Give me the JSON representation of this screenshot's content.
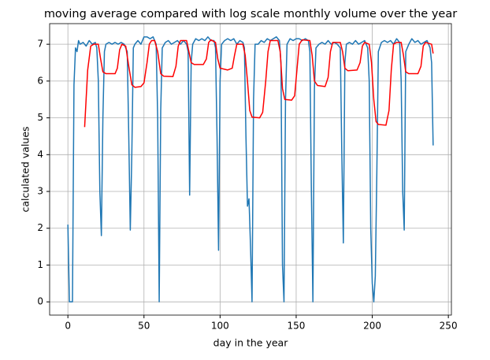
{
  "chart_data": {
    "type": "line",
    "title": "moving average compared with log scale monthly volume over the year",
    "x_label": "day in the year",
    "y_label": "calculated values",
    "xlim": [
      -12,
      252
    ],
    "xticks": [
      0,
      50,
      100,
      150,
      200,
      250
    ],
    "ylim": [
      -0.36,
      7.56
    ],
    "yticks": [
      0,
      1,
      2,
      3,
      4,
      5,
      6,
      7
    ],
    "grid": true,
    "series": [
      {
        "color": "#1f77b4",
        "x": [
          0,
          1,
          2,
          3,
          4,
          5,
          6,
          7,
          8,
          10,
          12,
          14,
          16,
          18,
          19,
          20,
          21,
          22,
          23,
          24,
          25,
          27,
          29,
          31,
          33,
          35,
          37,
          39,
          40,
          41,
          42,
          43,
          44,
          46,
          48,
          50,
          52,
          54,
          56,
          58,
          59,
          60,
          61,
          62,
          64,
          66,
          68,
          70,
          72,
          74,
          76,
          78,
          79,
          80,
          81,
          82,
          84,
          86,
          88,
          90,
          92,
          94,
          96,
          97,
          98,
          99,
          100,
          101,
          103,
          105,
          107,
          109,
          111,
          113,
          115,
          116,
          117,
          118,
          119,
          120,
          121,
          122,
          123,
          125,
          127,
          129,
          131,
          133,
          135,
          137,
          139,
          140,
          141,
          142,
          143,
          144,
          146,
          148,
          150,
          152,
          154,
          156,
          158,
          159,
          160,
          161,
          162,
          163,
          165,
          167,
          169,
          171,
          173,
          175,
          177,
          179,
          180,
          181,
          182,
          183,
          185,
          187,
          189,
          191,
          193,
          195,
          197,
          198,
          199,
          200,
          201,
          202,
          203,
          204,
          206,
          208,
          210,
          212,
          214,
          216,
          218,
          219,
          220,
          221,
          222,
          224,
          226,
          228,
          230,
          232,
          234,
          236,
          238,
          239,
          240
        ],
        "values": [
          2.1,
          0,
          0,
          0,
          5.9,
          6.9,
          6.8,
          7.1,
          7.0,
          7.05,
          6.95,
          7.1,
          7.0,
          7.05,
          6.9,
          6.0,
          3.0,
          1.8,
          5.0,
          6.8,
          7.0,
          7.05,
          7.0,
          7.05,
          7.0,
          7.05,
          7.0,
          6.8,
          4.5,
          1.95,
          4.0,
          6.9,
          7.0,
          7.1,
          7.0,
          7.2,
          7.2,
          7.15,
          7.2,
          7.0,
          5.0,
          0,
          5.2,
          6.9,
          7.05,
          7.1,
          7.0,
          7.05,
          7.1,
          7.0,
          7.1,
          7.0,
          6.8,
          2.9,
          6.5,
          7.0,
          7.15,
          7.1,
          7.15,
          7.1,
          7.2,
          7.1,
          7.1,
          6.9,
          4.5,
          1.4,
          6.0,
          7.0,
          7.1,
          7.15,
          7.1,
          7.15,
          7.0,
          7.1,
          7.05,
          6.9,
          4.5,
          2.6,
          2.8,
          1.5,
          0,
          5.5,
          7.0,
          7.0,
          7.1,
          7.05,
          7.15,
          7.1,
          7.15,
          7.2,
          7.1,
          6.5,
          1.0,
          0,
          5.5,
          7.0,
          7.15,
          7.1,
          7.15,
          7.15,
          7.1,
          7.15,
          7.1,
          6.8,
          3.0,
          0,
          5.8,
          6.9,
          7.0,
          7.05,
          7.0,
          7.1,
          7.0,
          7.05,
          7.0,
          6.9,
          4.0,
          1.6,
          6.5,
          7.0,
          7.05,
          7.0,
          7.1,
          7.0,
          7.05,
          7.1,
          6.9,
          6.0,
          2.0,
          0.5,
          0,
          0.7,
          3.5,
          6.8,
          7.05,
          7.1,
          7.05,
          7.1,
          7.0,
          7.15,
          7.05,
          6.0,
          3.0,
          1.95,
          6.8,
          7.0,
          7.15,
          7.05,
          7.1,
          7.0,
          7.05,
          7.1,
          6.9,
          6.5,
          4.25
        ]
      },
      {
        "color": "#ff0000",
        "x": [
          11,
          13,
          15,
          17,
          20,
          21.5,
          23,
          25,
          31,
          32.5,
          34,
          35.5,
          38,
          40,
          42,
          44,
          48,
          50,
          52,
          53.5,
          55,
          57,
          59,
          61,
          63,
          69,
          71,
          72.5,
          74,
          78,
          79.5,
          81,
          83,
          89,
          91,
          92.5,
          94,
          97,
          98.5,
          100,
          105,
          108,
          109.5,
          111,
          115,
          116.5,
          118,
          119.5,
          121,
          126,
          128,
          130,
          131.5,
          133,
          138,
          139.5,
          141,
          142.5,
          147,
          149,
          150.5,
          152,
          154,
          159,
          160.5,
          162,
          164,
          169,
          171,
          172.5,
          174,
          179,
          180.5,
          182,
          184,
          190,
          192,
          193.5,
          195,
          198,
          199.5,
          201,
          202.5,
          204,
          209,
          211,
          212.5,
          214,
          216,
          219,
          220.5,
          222,
          224,
          230,
          232,
          233.5,
          235,
          239,
          240
        ],
        "values": [
          4.75,
          6.3,
          6.95,
          7.0,
          7.0,
          6.6,
          6.25,
          6.2,
          6.2,
          6.35,
          6.85,
          7.0,
          6.95,
          6.4,
          5.9,
          5.83,
          5.85,
          5.95,
          6.5,
          7.0,
          7.1,
          7.1,
          6.8,
          6.2,
          6.13,
          6.12,
          6.4,
          6.95,
          7.1,
          7.1,
          6.8,
          6.5,
          6.45,
          6.45,
          6.6,
          7.05,
          7.12,
          7.05,
          6.6,
          6.35,
          6.3,
          6.35,
          6.7,
          7.0,
          7.0,
          6.7,
          6.0,
          5.2,
          5.02,
          5.0,
          5.15,
          6.0,
          6.8,
          7.1,
          7.1,
          6.8,
          5.8,
          5.5,
          5.48,
          5.6,
          6.3,
          7.0,
          7.12,
          7.1,
          6.7,
          6.0,
          5.88,
          5.85,
          6.1,
          6.8,
          7.05,
          7.05,
          6.8,
          6.35,
          6.28,
          6.3,
          6.5,
          6.95,
          7.05,
          7.0,
          6.5,
          5.5,
          4.9,
          4.82,
          4.8,
          5.2,
          6.3,
          7.0,
          7.05,
          7.05,
          6.7,
          6.25,
          6.2,
          6.2,
          6.4,
          6.95,
          7.05,
          7.0,
          6.75
        ]
      }
    ]
  }
}
